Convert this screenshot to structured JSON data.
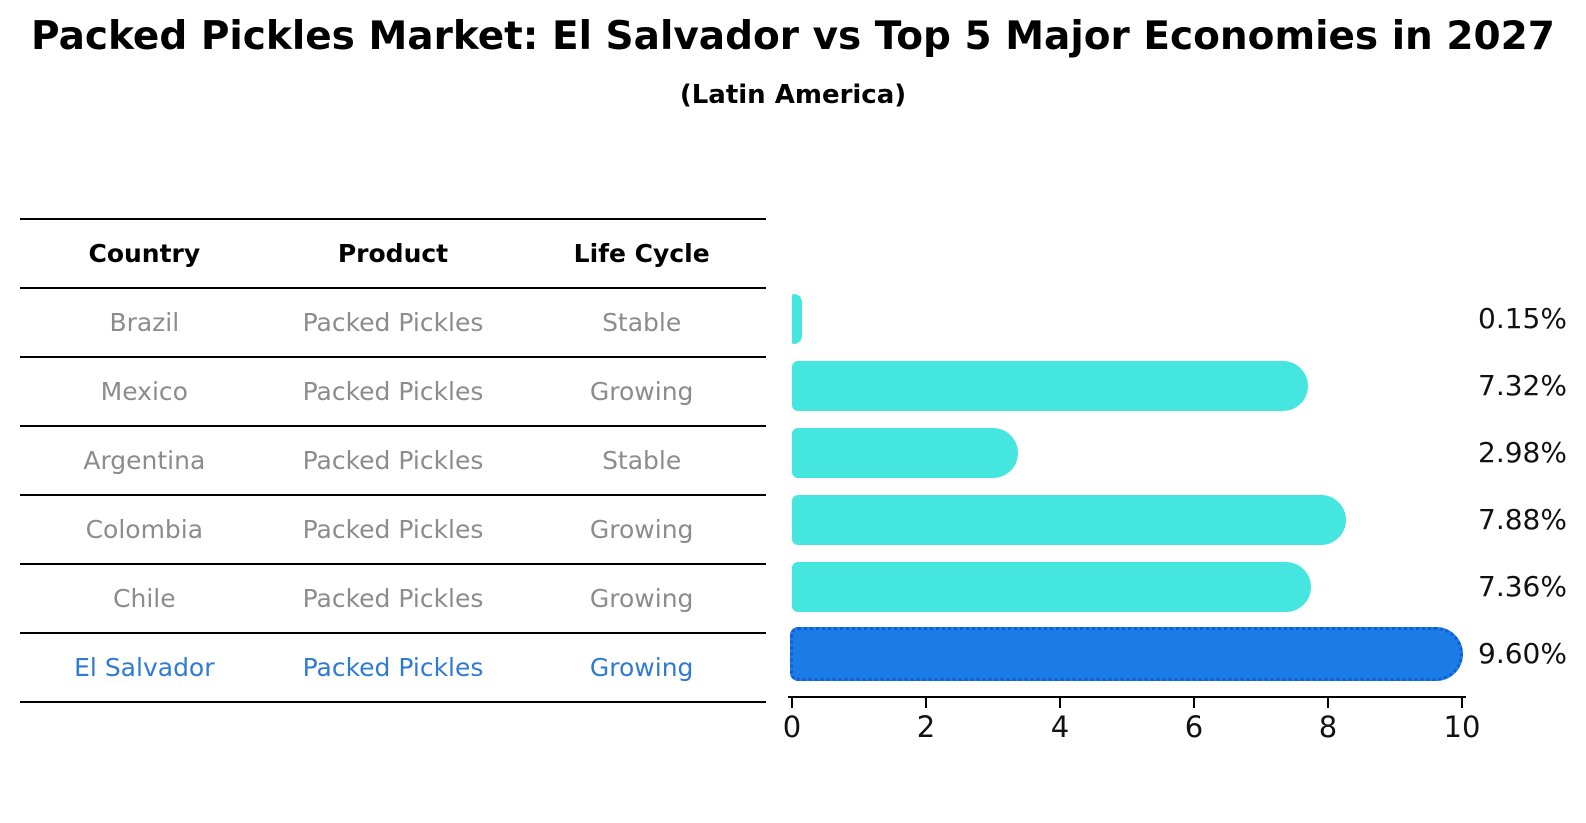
{
  "title": "Packed Pickles Market: El Salvador vs Top 5 Major Economies in 2027",
  "subtitle": "(Latin America)",
  "colors": {
    "bar_default": "#45e5e0",
    "bar_highlight": "#1b7ce8",
    "bar_highlight_border": "#0d5ed2",
    "table_text": "#8c8c8c",
    "highlight_text": "#2f7bd4",
    "axis_text": "#111111"
  },
  "table": {
    "headers": [
      "Country",
      "Product",
      "Life Cycle"
    ],
    "rows": [
      {
        "country": "Brazil",
        "product": "Packed Pickles",
        "life_cycle": "Stable",
        "highlight": false
      },
      {
        "country": "Mexico",
        "product": "Packed Pickles",
        "life_cycle": "Growing",
        "highlight": false
      },
      {
        "country": "Argentina",
        "product": "Packed Pickles",
        "life_cycle": "Stable",
        "highlight": false
      },
      {
        "country": "Colombia",
        "product": "Packed Pickles",
        "life_cycle": "Growing",
        "highlight": false
      },
      {
        "country": "Chile",
        "product": "Packed Pickles",
        "life_cycle": "Growing",
        "highlight": false
      },
      {
        "country": "El Salvador",
        "product": "Packed Pickles",
        "life_cycle": "Growing",
        "highlight": true
      }
    ]
  },
  "chart_data": {
    "type": "bar",
    "orientation": "horizontal",
    "title": "Packed Pickles Market: El Salvador vs Top 5 Major Economies in 2027",
    "subtitle": "(Latin America)",
    "categories": [
      "Brazil",
      "Mexico",
      "Argentina",
      "Colombia",
      "Chile",
      "El Salvador"
    ],
    "values": [
      0.15,
      7.32,
      2.98,
      7.88,
      7.36,
      9.6
    ],
    "value_labels": [
      "0.15%",
      "7.32%",
      "2.98%",
      "7.88%",
      "7.36%",
      "9.60%"
    ],
    "highlight_index": 5,
    "xlim": [
      0,
      10
    ],
    "x_ticks": [
      "0",
      "2",
      "4",
      "6",
      "8",
      "10"
    ],
    "grid": false,
    "legend": false
  }
}
